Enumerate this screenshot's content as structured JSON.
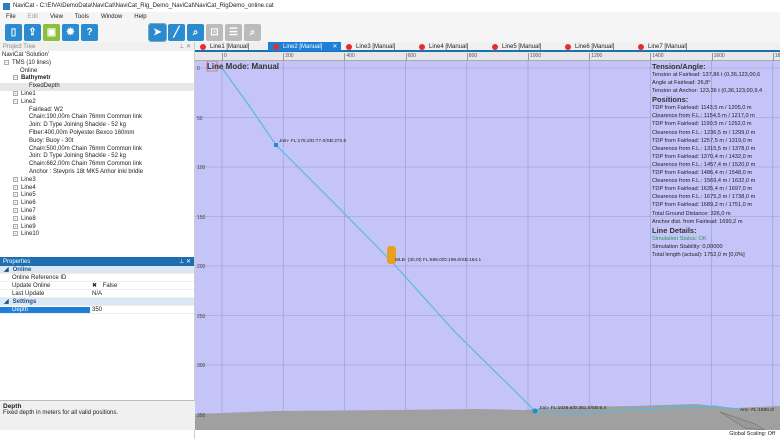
{
  "window": {
    "title": "NaviCat - C:\\EIVA\\DemoData\\NaviCat\\NaviCat_Rig_Demo_NaviCat\\NaviCat_RigDemo_online.cat"
  },
  "menu": [
    "File",
    "Edit",
    "View",
    "Tools",
    "Window",
    "Help"
  ],
  "toolbar": {
    "icons": [
      "new-file-icon",
      "open-file-icon",
      "save-icon",
      "gear-icon",
      "help-icon",
      "pointer-icon",
      "line-tool-icon",
      "zoom-icon",
      "zoom-window-icon",
      "zoom-fit-icon",
      "zoom-out-icon"
    ],
    "help": "?"
  },
  "tree": {
    "title": "Project Tree",
    "pin": "⊥ ✕",
    "root": "NaviCat 'Solution'",
    "tms": "TMS (10 lines)",
    "online": "Online",
    "bathymetry": "Bathymetr",
    "fixed_depth": "FixedDepth",
    "line1": "Line1",
    "line2": "Line2",
    "line2_items": [
      "Fairlead: W2",
      "Chain:190,00m Chain 76mm Common link",
      "Join: D Type Joining Shackle - 52 kg",
      "Fiber:400,00m Polyester Bexco 160mm",
      "Buoy: Buoy - 30t",
      "Chain:500,00m Chain 76mm Common link",
      "Join: D Type Joining Shackle - 52 kg",
      "Chain:662,00m Chain 76mm Common link",
      "Anchor : Stevpris 18t MK5 Anhor inkl bridle"
    ],
    "other_lines": [
      "Line3",
      "Line4",
      "Line5",
      "Line6",
      "Line7",
      "Line8",
      "Line9",
      "Line10"
    ]
  },
  "properties": {
    "title": "Properties",
    "pin": "⊥ ✕",
    "cat_online": "Online",
    "online_ref_id": "Online Reference ID",
    "online_ref_val": "",
    "update_online": "Update Online",
    "update_online_val": "False",
    "update_check": "✖",
    "last_update": "Last Update",
    "last_update_val": "N/A",
    "cat_settings": "Settings",
    "depth": "Depth",
    "depth_val": "350",
    "desc_title": "Depth",
    "desc_text": "Fixed depth in meters for all valid positions."
  },
  "tabs": [
    "Line1 [Manual]",
    "Line2 [Manual]",
    "Line3 [Manual]",
    "Line4 [Manual]",
    "Line5 [Manual]",
    "Line6 [Manual]",
    "Line7 [Manual]"
  ],
  "active_tab_close": "✕",
  "plot": {
    "mode": "Line Mode: Manual",
    "x_ticks": [
      "0",
      "200",
      "400",
      "600",
      "800",
      "1000",
      "1200",
      "1400",
      "1600",
      "1800"
    ],
    "y_ticks": [
      "0",
      "50",
      "100",
      "150",
      "200",
      "250",
      "300",
      "350"
    ],
    "labels": {
      "join1": "Join- FL:176.2/D:77.0/SB:272.6",
      "buoy": "MLB- (30.0t) FL:666.0/D:199.6/SB:164.1",
      "join2": "Join- FL:1028.6/D:351.0/SB:6.4",
      "anchor": "Anc- FL:1690.2/"
    },
    "colors": {
      "background": "#c4c4f8",
      "line": "#5ab8e0",
      "buoy": "#e8a020",
      "seabed": "#a0a0a0"
    }
  },
  "info": {
    "tension_h": "Tension/Angle:",
    "tension": [
      "Tension at Fairlead: 137,86 t (0,36,123,00,6",
      "Angle at Fairlead: 26,8°",
      "Tension at Anchor: 123,36 t (0,36,123,00,9,4"
    ],
    "positions_h": "Positions:",
    "positions": [
      "TDP from Fairlead: 1143,5 m / 1205,0 m",
      "Clearence from F.L.: 1154,5 m / 1217,0 m",
      "TDP from Fairlead: 1190,5 m / 1252,0 m",
      "Clearence from F.L.: 1236,5 m / 1299,0 m",
      "TDP from Fairlead: 1257,5 m / 1319,0 m",
      "Clearence from F.L.: 1315,5 m / 1378,0 m",
      "TDP from Fairlead: 1370,4 m / 1432,0 m",
      "Clearence from F.L.: 1457,4 m / 1520,0 m",
      "TDP from Fairlead: 1486,4 m / 1548,0 m",
      "Clearence from F.L.: 1569,4 m / 1632,0 m",
      "TDP from Fairlead: 1635,4 m / 1697,0 m",
      "Clearence from F.L.: 1675,3 m / 1738,0 m",
      "TDP from Fairlead: 1689,2 m / 1751,0 m",
      "Total Ground Distance: 326,0 m",
      "Anchor dist. from Fairlead: 1690,2 m"
    ],
    "details_h": "Line Details:",
    "sim_status": "Simulation Status: OK",
    "details": [
      "Simulation Stability: 0,00000",
      "Total length (actual): 1752,0 m [0,0%]"
    ]
  },
  "status": {
    "global_scaling": "Global Scaling: Off"
  }
}
